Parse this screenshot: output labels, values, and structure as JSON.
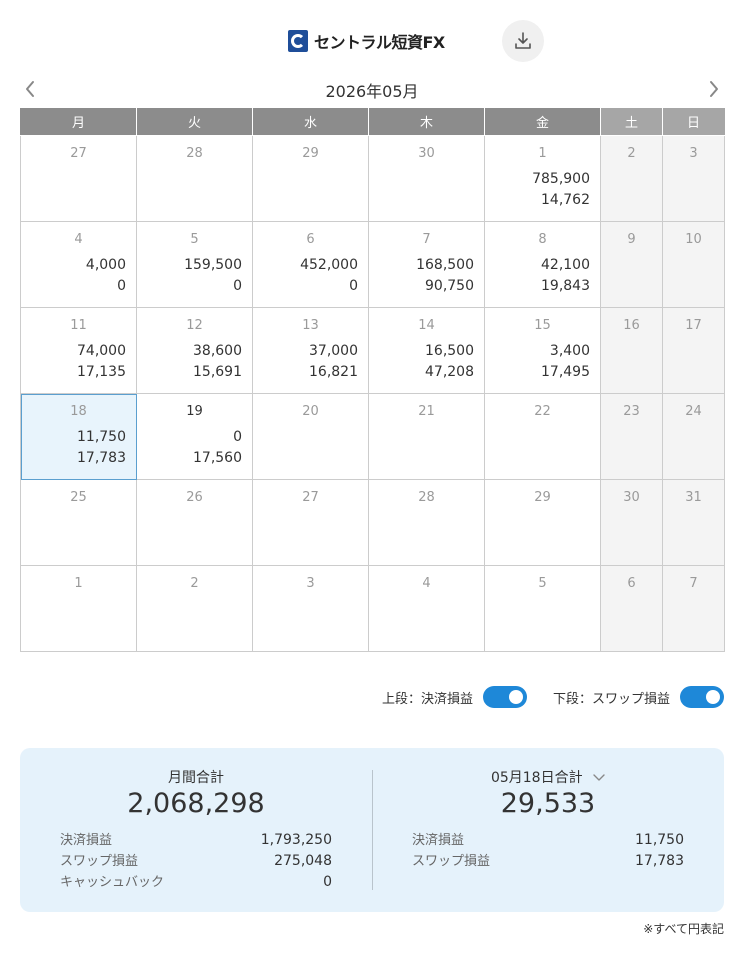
{
  "header": {
    "brand": "セントラル短資FX",
    "download_icon": "download-icon"
  },
  "calendar": {
    "month_title": "2026年05月",
    "weekdays": [
      "月",
      "火",
      "水",
      "木",
      "金",
      "土",
      "日"
    ],
    "weeks": [
      [
        {
          "day": "27",
          "upper": "",
          "lower": ""
        },
        {
          "day": "28",
          "upper": "",
          "lower": ""
        },
        {
          "day": "29",
          "upper": "",
          "lower": ""
        },
        {
          "day": "30",
          "upper": "",
          "lower": ""
        },
        {
          "day": "1",
          "upper": "785,900",
          "lower": "14,762"
        },
        {
          "day": "2",
          "upper": "",
          "lower": ""
        },
        {
          "day": "3",
          "upper": "",
          "lower": ""
        }
      ],
      [
        {
          "day": "4",
          "upper": "4,000",
          "lower": "0"
        },
        {
          "day": "5",
          "upper": "159,500",
          "lower": "0"
        },
        {
          "day": "6",
          "upper": "452,000",
          "lower": "0"
        },
        {
          "day": "7",
          "upper": "168,500",
          "lower": "90,750"
        },
        {
          "day": "8",
          "upper": "42,100",
          "lower": "19,843"
        },
        {
          "day": "9",
          "upper": "",
          "lower": ""
        },
        {
          "day": "10",
          "upper": "",
          "lower": ""
        }
      ],
      [
        {
          "day": "11",
          "upper": "74,000",
          "lower": "17,135"
        },
        {
          "day": "12",
          "upper": "38,600",
          "lower": "15,691"
        },
        {
          "day": "13",
          "upper": "37,000",
          "lower": "16,821"
        },
        {
          "day": "14",
          "upper": "16,500",
          "lower": "47,208"
        },
        {
          "day": "15",
          "upper": "3,400",
          "lower": "17,495"
        },
        {
          "day": "16",
          "upper": "",
          "lower": ""
        },
        {
          "day": "17",
          "upper": "",
          "lower": ""
        }
      ],
      [
        {
          "day": "18",
          "upper": "11,750",
          "lower": "17,783",
          "selected": true
        },
        {
          "day": "19",
          "upper": "0",
          "lower": "17,560",
          "today": true
        },
        {
          "day": "20",
          "upper": "",
          "lower": ""
        },
        {
          "day": "21",
          "upper": "",
          "lower": ""
        },
        {
          "day": "22",
          "upper": "",
          "lower": ""
        },
        {
          "day": "23",
          "upper": "",
          "lower": ""
        },
        {
          "day": "24",
          "upper": "",
          "lower": ""
        }
      ],
      [
        {
          "day": "25",
          "upper": "",
          "lower": ""
        },
        {
          "day": "26",
          "upper": "",
          "lower": ""
        },
        {
          "day": "27",
          "upper": "",
          "lower": ""
        },
        {
          "day": "28",
          "upper": "",
          "lower": ""
        },
        {
          "day": "29",
          "upper": "",
          "lower": ""
        },
        {
          "day": "30",
          "upper": "",
          "lower": ""
        },
        {
          "day": "31",
          "upper": "",
          "lower": ""
        }
      ],
      [
        {
          "day": "1",
          "upper": "",
          "lower": ""
        },
        {
          "day": "2",
          "upper": "",
          "lower": ""
        },
        {
          "day": "3",
          "upper": "",
          "lower": ""
        },
        {
          "day": "4",
          "upper": "",
          "lower": ""
        },
        {
          "day": "5",
          "upper": "",
          "lower": ""
        },
        {
          "day": "6",
          "upper": "",
          "lower": ""
        },
        {
          "day": "7",
          "upper": "",
          "lower": ""
        }
      ]
    ]
  },
  "toggles": {
    "upper_label": "上段：決済損益",
    "lower_label": "下段：スワップ損益",
    "upper_on": true,
    "lower_on": true
  },
  "summary": {
    "monthly": {
      "title": "月間合計",
      "total": "2,068,298",
      "rows": [
        {
          "label": "決済損益",
          "value": "1,793,250"
        },
        {
          "label": "スワップ損益",
          "value": "275,048"
        },
        {
          "label": "キャッシュバック",
          "value": "0"
        }
      ]
    },
    "daily": {
      "title": "05月18日合計",
      "total": "29,533",
      "rows": [
        {
          "label": "決済損益",
          "value": "11,750"
        },
        {
          "label": "スワップ損益",
          "value": "17,783"
        }
      ]
    }
  },
  "note": "※すべて円表記",
  "colors": {
    "header_weekday": "#8c8c8c",
    "header_weekend": "#a6a6a6",
    "accent": "#1e88d8",
    "summary_bg": "#e5f2fb",
    "selected_bg": "#e8f4fc"
  }
}
